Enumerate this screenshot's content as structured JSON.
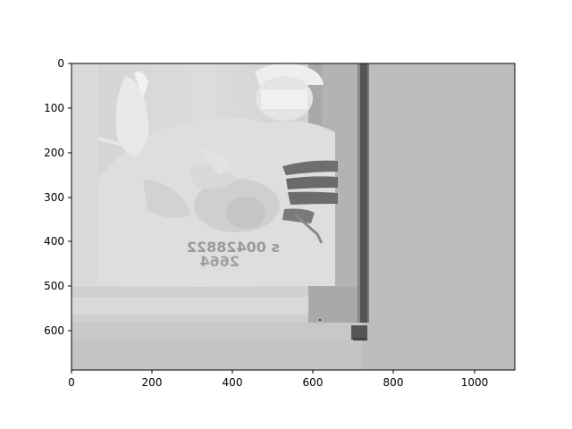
{
  "figure": {
    "background": "#ffffff",
    "image_fill": "#bdbdbd",
    "vertical_band_color": "#555555"
  },
  "axes": {
    "x_ticks": [
      "0",
      "200",
      "400",
      "600",
      "800",
      "1000"
    ],
    "y_ticks": [
      "0",
      "100",
      "200",
      "300",
      "400",
      "500",
      "600"
    ],
    "xlim": [
      0,
      1100
    ],
    "ylim": [
      690,
      0
    ]
  },
  "image_content": {
    "description_icons": [
      "surgeon-icon",
      "newborn-icon",
      "hands-icon"
    ],
    "mirrored_text": [
      "s 00428822",
      "2664"
    ]
  }
}
